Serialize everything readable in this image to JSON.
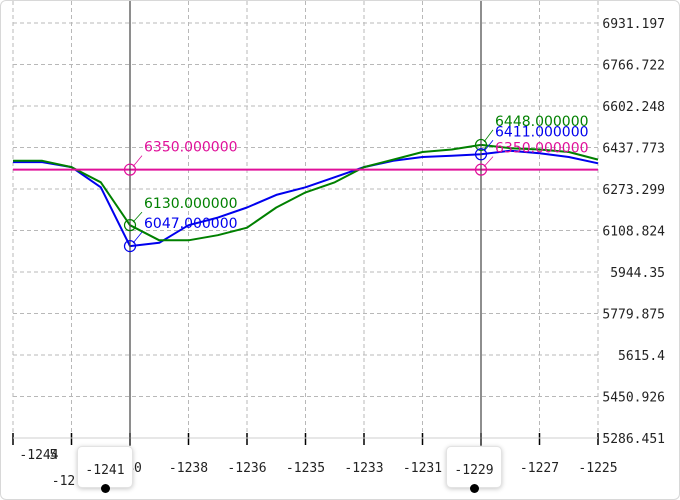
{
  "chart_data": {
    "type": "line",
    "xlim": [
      -1245,
      -1225
    ],
    "ylim": [
      5286.451,
      6931.197
    ],
    "y_ticks": [
      "6931.197",
      "6766.722",
      "6602.248",
      "6437.773",
      "6273.299",
      "6108.824",
      "5944.35",
      "5779.875",
      "5615.4",
      "5450.926",
      "5286.451"
    ],
    "x_ticks": [
      "-1244",
      "-1242",
      "-1240",
      "-1238",
      "-1236",
      "-1235",
      "-1233",
      "-1231",
      "-1229",
      "-1227",
      "-1225"
    ],
    "x_tick_labels_visible": [
      "-1244",
      "-12",
      "40",
      "-1238",
      "-1236",
      "-1235",
      "-1233",
      "-1231",
      "-1227",
      "-1225"
    ],
    "series": [
      {
        "name": "blue",
        "color": "#0000ee",
        "x": [
          -1245,
          -1244,
          -1243,
          -1242,
          -1241,
          -1240,
          -1239,
          -1238,
          -1237,
          -1236,
          -1235,
          -1234,
          -1233,
          -1232,
          -1231,
          -1230,
          -1229,
          -1228,
          -1227,
          -1226,
          -1225
        ],
        "y": [
          6380,
          6380,
          6360,
          6280,
          6047,
          6060,
          6130,
          6160,
          6200,
          6250,
          6280,
          6320,
          6360,
          6385,
          6400,
          6405,
          6411,
          6425,
          6415,
          6400,
          6375
        ]
      },
      {
        "name": "green",
        "color": "#008000",
        "x": [
          -1245,
          -1244,
          -1243,
          -1242,
          -1241,
          -1240,
          -1239,
          -1238,
          -1237,
          -1236,
          -1235,
          -1234,
          -1233,
          -1232,
          -1231,
          -1230,
          -1229,
          -1228,
          -1227,
          -1226,
          -1225
        ],
        "y": [
          6385,
          6385,
          6360,
          6300,
          6130,
          6070,
          6070,
          6090,
          6120,
          6200,
          6260,
          6300,
          6360,
          6390,
          6420,
          6430,
          6448,
          6435,
          6430,
          6420,
          6390
        ]
      },
      {
        "name": "magenta",
        "color": "#e0109a",
        "x": [
          -1245,
          -1225
        ],
        "y": [
          6350,
          6350
        ]
      }
    ],
    "crosshairs": [
      {
        "x": -1241,
        "handle_label": "-1241",
        "readouts": [
          {
            "series": "magenta",
            "value": 6350,
            "text": "6350.000000"
          },
          {
            "series": "green",
            "value": 6130,
            "text": "6130.000000"
          },
          {
            "series": "blue",
            "value": 6047,
            "text": "6047.000000"
          }
        ]
      },
      {
        "x": -1229,
        "handle_label": "-1229",
        "readouts": [
          {
            "series": "green",
            "value": 6448,
            "text": "6448.000000"
          },
          {
            "series": "blue",
            "value": 6411,
            "text": "6411.000000"
          },
          {
            "series": "magenta",
            "value": 6350,
            "text": "6350.000000"
          }
        ]
      }
    ],
    "grid": true
  }
}
